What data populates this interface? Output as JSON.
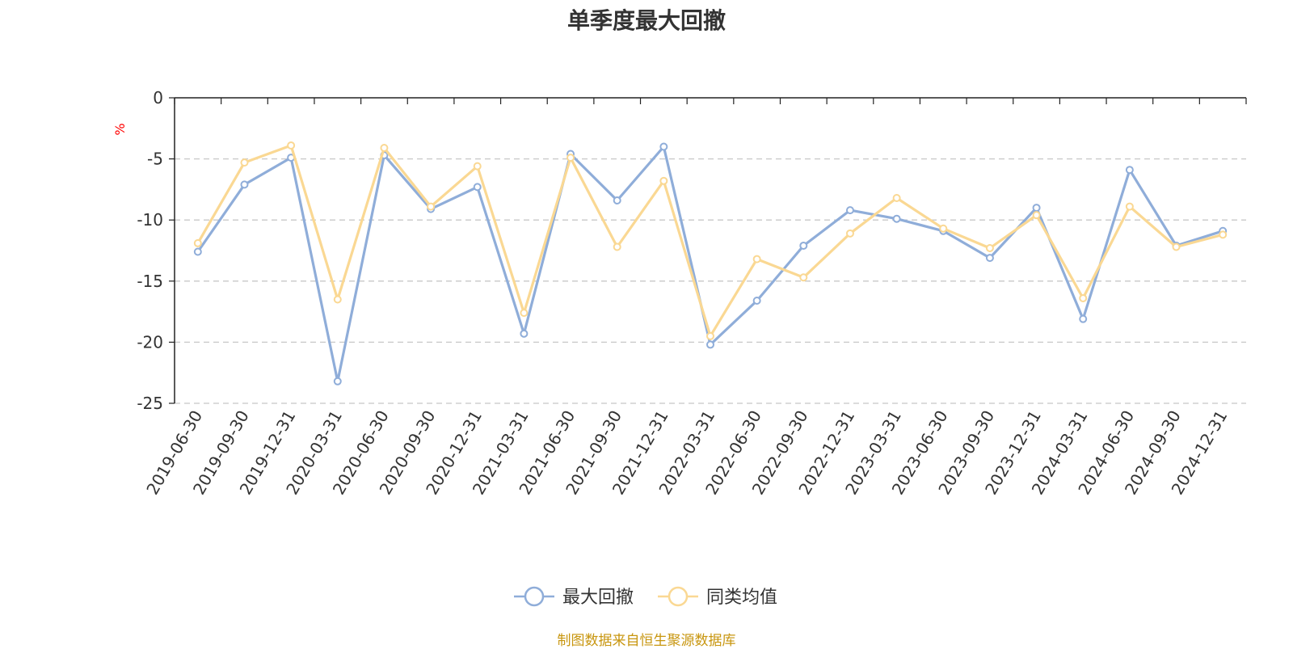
{
  "title": "单季度最大回撤",
  "source_note": "制图数据来自恒生聚源数据库",
  "colors": {
    "series1": "#8fadd9",
    "series2": "#fad893",
    "unit": "#ff0000",
    "grid": "#c8c8c8",
    "axis": "#222222"
  },
  "chart_data": {
    "type": "line",
    "title": "单季度最大回撤",
    "ylabel": "%",
    "xlabel": "",
    "ylim": [
      -25,
      0
    ],
    "yticks": [
      0,
      -5,
      -10,
      -15,
      -20,
      -25
    ],
    "grid": true,
    "legend_position": "bottom-center",
    "categories": [
      "2019-06-30",
      "2019-09-30",
      "2019-12-31",
      "2020-03-31",
      "2020-06-30",
      "2020-09-30",
      "2020-12-31",
      "2021-03-31",
      "2021-06-30",
      "2021-09-30",
      "2021-12-31",
      "2022-03-31",
      "2022-06-30",
      "2022-09-30",
      "2022-12-31",
      "2023-03-31",
      "2023-06-30",
      "2023-09-30",
      "2023-12-31",
      "2024-03-31",
      "2024-06-30",
      "2024-09-30",
      "2024-12-31"
    ],
    "series": [
      {
        "name": "最大回撤",
        "color": "#8fadd9",
        "values": [
          -12.6,
          -7.1,
          -4.9,
          -23.2,
          -4.7,
          -9.1,
          -7.3,
          -19.3,
          -4.6,
          -8.4,
          -4.0,
          -20.2,
          -16.6,
          -12.1,
          -9.2,
          -9.9,
          -10.9,
          -13.1,
          -9.0,
          -18.1,
          -5.9,
          -12.1,
          -10.9
        ]
      },
      {
        "name": "同类均值",
        "color": "#fad893",
        "values": [
          -11.9,
          -5.3,
          -3.9,
          -16.5,
          -4.1,
          -8.9,
          -5.6,
          -17.6,
          -4.9,
          -12.2,
          -6.8,
          -19.5,
          -13.2,
          -14.7,
          -11.1,
          -8.2,
          -10.7,
          -12.3,
          -9.6,
          -16.4,
          -8.9,
          -12.2,
          -11.2
        ]
      }
    ]
  }
}
